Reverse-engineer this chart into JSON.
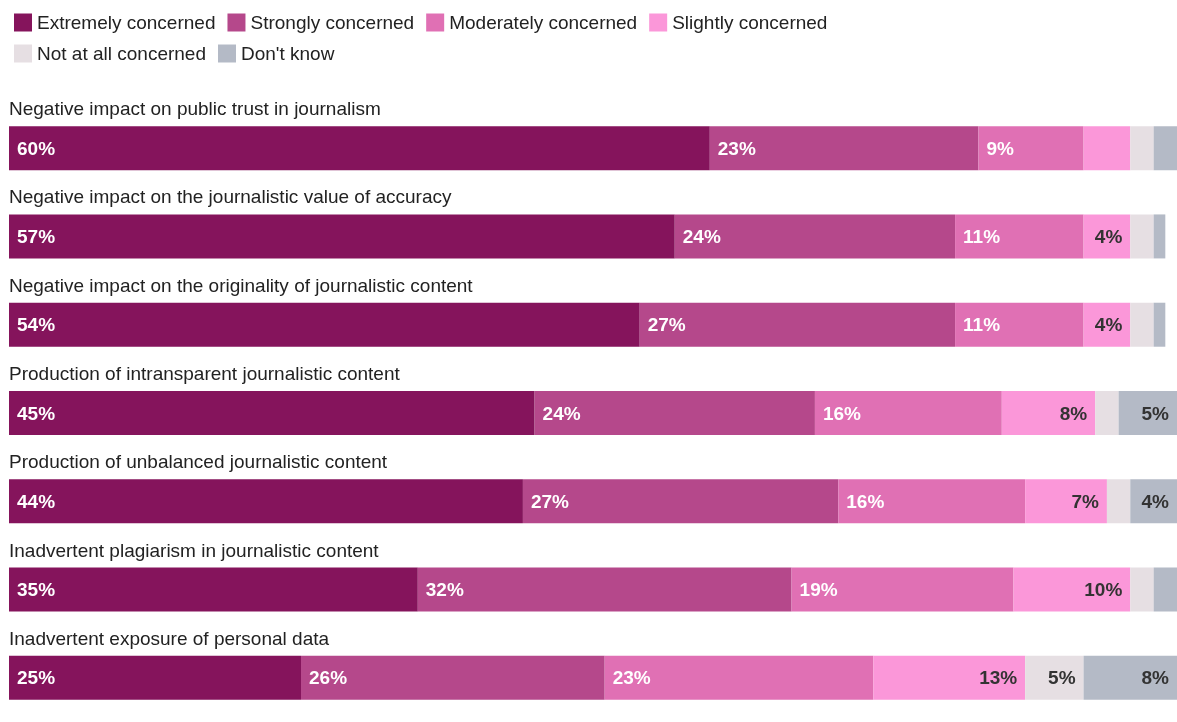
{
  "chart_data": {
    "type": "bar",
    "orientation": "horizontal",
    "stacked": true,
    "legend": "top left",
    "xlim": [
      0,
      100
    ],
    "categories": [
      "Negative impact on public trust in journalism",
      "Negative impact on the journalistic value of accuracy",
      "Negative impact on the originality of journalistic content",
      "Production of intransparent journalistic content",
      "Production of unbalanced journalistic content",
      "Inadvertent plagiarism in journalistic content",
      "Inadvertent exposure of personal data"
    ],
    "series": [
      {
        "name": "Extremely concerned",
        "color": "#85145c",
        "values": [
          60,
          57,
          54,
          45,
          44,
          35,
          25
        ],
        "value_labels": [
          "60%",
          "57%",
          "54%",
          "45%",
          "44%",
          "35%",
          "25%"
        ]
      },
      {
        "name": "Strongly concerned",
        "color": "#b5488b",
        "values": [
          23,
          24,
          27,
          24,
          27,
          32,
          26
        ],
        "value_labels": [
          "23%",
          "24%",
          "27%",
          "24%",
          "27%",
          "32%",
          "26%"
        ]
      },
      {
        "name": "Moderately concerned",
        "color": "#e070b4",
        "values": [
          9,
          11,
          11,
          16,
          16,
          19,
          23
        ],
        "value_labels": [
          "9%",
          "11%",
          "11%",
          "16%",
          "16%",
          "19%",
          "23%"
        ]
      },
      {
        "name": "Slightly concerned",
        "color": "#fb97d9",
        "values": [
          4,
          4,
          4,
          8,
          7,
          10,
          13
        ],
        "value_labels": [
          null,
          "4%",
          "4%",
          "8%",
          "7%",
          "10%",
          "13%"
        ]
      },
      {
        "name": "Not at all concerned",
        "color": "#e6dfe3",
        "values": [
          2,
          2,
          2,
          2,
          2,
          2,
          5
        ],
        "value_labels": [
          null,
          null,
          null,
          null,
          null,
          null,
          "5%"
        ]
      },
      {
        "name": "Don't know",
        "color": "#b4bac6",
        "values": [
          2,
          1,
          1,
          5,
          4,
          2,
          8
        ],
        "value_labels": [
          null,
          null,
          null,
          "5%",
          "4%",
          null,
          "8%"
        ]
      }
    ]
  }
}
